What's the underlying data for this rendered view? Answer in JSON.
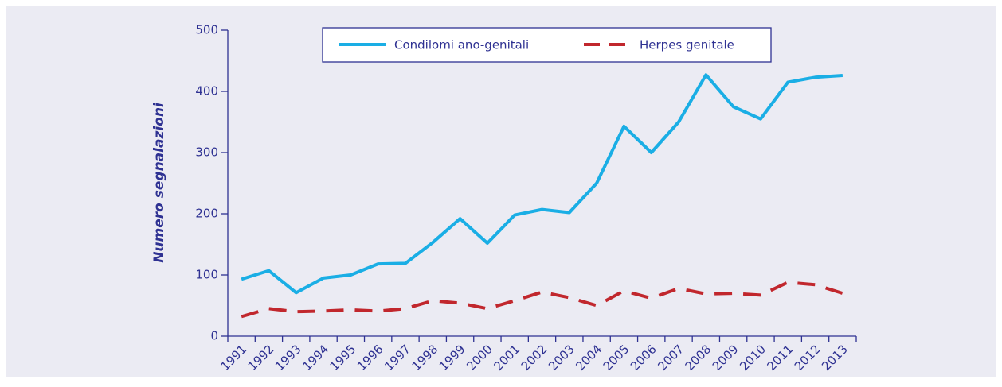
{
  "chart_data": {
    "type": "line",
    "y_label": "Numero segnalazioni",
    "categories": [
      "1991",
      "1992",
      "1993",
      "1994",
      "1995",
      "1996",
      "1997",
      "1998",
      "1999",
      "2000",
      "2001",
      "2002",
      "2003",
      "2004",
      "2005",
      "2006",
      "2007",
      "2008",
      "2009",
      "2010",
      "2011",
      "2012",
      "2013"
    ],
    "series": [
      {
        "name": "Condilomi ano-genitali",
        "color": "#1aaee5",
        "dash": false,
        "values": [
          93,
          107,
          71,
          95,
          100,
          118,
          119,
          153,
          192,
          152,
          198,
          207,
          202,
          250,
          343,
          300,
          350,
          427,
          375,
          355,
          415,
          423,
          426
        ]
      },
      {
        "name": "Herpes genitale",
        "color": "#c1272d",
        "dash": true,
        "values": [
          32,
          45,
          40,
          41,
          43,
          41,
          45,
          58,
          54,
          45,
          58,
          72,
          63,
          50,
          74,
          62,
          78,
          69,
          70,
          67,
          88,
          84,
          70
        ]
      }
    ],
    "ylim": [
      0,
      500
    ],
    "yticks": [
      0,
      100,
      200,
      300,
      400,
      500
    ],
    "legend": "top"
  }
}
